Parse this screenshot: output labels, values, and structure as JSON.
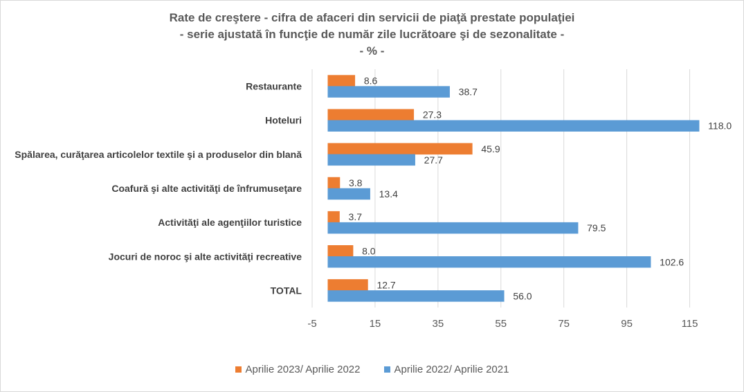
{
  "chart_data": {
    "type": "bar",
    "orientation": "horizontal",
    "title_lines": [
      "Rate de creştere - cifra de afaceri din servicii de piaţă prestate populaţiei",
      "- serie ajustată în funcţie de număr zile lucrătoare şi de sezonalitate -",
      "- % -"
    ],
    "categories": [
      "Restaurante",
      "Hoteluri",
      "Spălarea, curăţarea articolelor textile şi a produselor din blană",
      "Coafură şi alte activităţi de înfrumuseţare",
      "Activităţi ale agenţiilor turistice",
      "Jocuri de noroc şi alte activităţi recreative",
      "TOTAL"
    ],
    "series": [
      {
        "name": "Aprilie 2023/ Aprilie 2022",
        "color": "#ED7D31",
        "values": [
          8.6,
          27.3,
          45.9,
          3.8,
          3.7,
          8.0,
          12.7
        ]
      },
      {
        "name": "Aprilie 2022/ Aprilie 2021",
        "color": "#5B9BD5",
        "values": [
          38.7,
          118.0,
          27.7,
          13.4,
          79.5,
          102.6,
          56.0
        ]
      }
    ],
    "xlim": [
      -5,
      125
    ],
    "xticks": [
      -5,
      15,
      35,
      55,
      75,
      95,
      115
    ],
    "grid": true,
    "legend_position": "bottom"
  }
}
